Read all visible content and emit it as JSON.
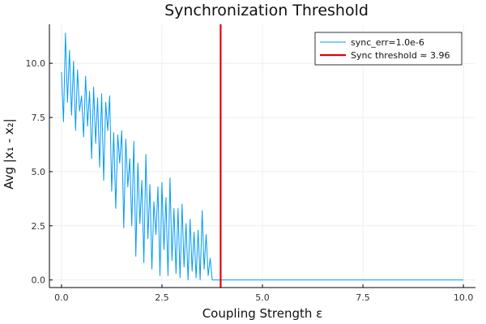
{
  "chart_data": {
    "type": "line",
    "title": "Synchronization Threshold",
    "xlabel": "Coupling Strength ε",
    "ylabel": "Avg |x₁ - x₂|",
    "xlim": [
      -0.3,
      10.3
    ],
    "ylim": [
      -0.35,
      11.8
    ],
    "x_ticks": [
      0,
      2.5,
      5,
      7.5,
      10
    ],
    "x_tick_labels": [
      "0.0",
      "2.5",
      "5.0",
      "7.5",
      "10.0"
    ],
    "y_ticks": [
      0,
      2.5,
      5,
      7.5,
      10
    ],
    "y_tick_labels": [
      "0.0",
      "2.5",
      "5.0",
      "7.5",
      "10.0"
    ],
    "grid": true,
    "legend_position": "top-right",
    "series": [
      {
        "name": "sync_err=1.0e-6",
        "color": "#009AFA",
        "x": [
          0.0,
          0.05,
          0.1,
          0.15,
          0.2,
          0.25,
          0.3,
          0.35,
          0.4,
          0.45,
          0.5,
          0.55,
          0.6,
          0.65,
          0.7,
          0.75,
          0.8,
          0.85,
          0.9,
          0.95,
          1.0,
          1.05,
          1.1,
          1.15,
          1.2,
          1.25,
          1.3,
          1.35,
          1.4,
          1.45,
          1.5,
          1.55,
          1.6,
          1.65,
          1.7,
          1.75,
          1.8,
          1.85,
          1.9,
          1.95,
          2.0,
          2.05,
          2.1,
          2.15,
          2.2,
          2.25,
          2.3,
          2.35,
          2.4,
          2.45,
          2.5,
          2.55,
          2.6,
          2.65,
          2.7,
          2.75,
          2.8,
          2.85,
          2.9,
          2.95,
          3.0,
          3.05,
          3.1,
          3.15,
          3.2,
          3.25,
          3.3,
          3.35,
          3.4,
          3.45,
          3.5,
          3.55,
          3.6,
          3.65,
          3.7,
          3.75,
          3.8,
          3.85,
          3.9,
          3.95,
          4.0,
          5.0,
          6.0,
          7.0,
          8.0,
          9.0,
          10.0
        ],
        "values": [
          9.6,
          7.3,
          11.4,
          8.2,
          10.6,
          7.6,
          10.1,
          6.9,
          9.7,
          7.8,
          8.5,
          6.6,
          9.4,
          7.1,
          8.7,
          5.6,
          8.9,
          6.3,
          8.4,
          5.2,
          8.6,
          4.6,
          8.2,
          6.9,
          8.5,
          4.1,
          6.8,
          3.3,
          6.7,
          5.4,
          6.9,
          2.4,
          6.5,
          4.3,
          5.6,
          2.5,
          6.4,
          1.1,
          5.4,
          2.6,
          4.6,
          0.8,
          5.8,
          1.9,
          4.4,
          0.5,
          3.6,
          2.1,
          4.3,
          0.2,
          4.5,
          1.4,
          3.8,
          0.2,
          4.7,
          0.9,
          3.3,
          0.3,
          3.3,
          0.1,
          3.5,
          0.6,
          2.6,
          0.0,
          2.8,
          0.4,
          2.2,
          0.1,
          2.3,
          0.0,
          3.2,
          0.5,
          2.1,
          0.2,
          1.0,
          0.0,
          0.0,
          0.0,
          0.0,
          0.0,
          0.0,
          0.0,
          0.0,
          0.0,
          0.0,
          0.0,
          0.0
        ]
      },
      {
        "name": "Sync threshold ≈ 3.96",
        "color": "#E6000B",
        "type": "vline",
        "x": 3.96
      }
    ]
  }
}
